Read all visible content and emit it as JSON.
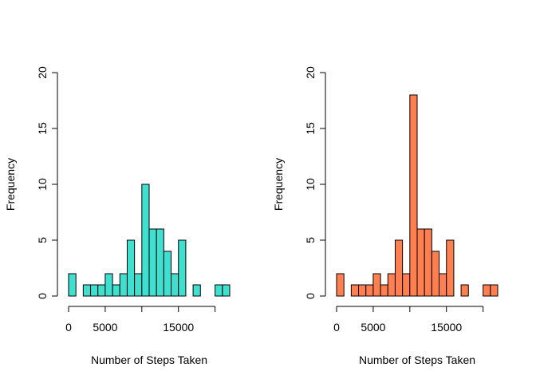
{
  "chart_data": [
    {
      "type": "bar",
      "subtype": "histogram",
      "title": "",
      "xlabel": "Number of Steps Taken",
      "ylabel": "Frequency",
      "bin_width": 1000,
      "bin_start": 0,
      "values": [
        2,
        0,
        1,
        1,
        1,
        2,
        1,
        2,
        5,
        2,
        10,
        6,
        6,
        4,
        2,
        5,
        0,
        1,
        0,
        0,
        1,
        1
      ],
      "xlim": [
        0,
        22000
      ],
      "ylim": [
        0,
        20
      ],
      "xticks": [
        0,
        5000,
        10000,
        15000,
        20000
      ],
      "xtick_labels": [
        "0",
        "5000",
        "",
        "15000",
        ""
      ],
      "yticks": [
        0,
        5,
        10,
        15,
        20
      ],
      "ytick_labels": [
        "0",
        "5",
        "10",
        "15",
        "20"
      ],
      "grid": false,
      "color": "#40E0D0"
    },
    {
      "type": "bar",
      "subtype": "histogram",
      "title": "",
      "xlabel": "Number of Steps Taken",
      "ylabel": "Frequency",
      "bin_width": 1000,
      "bin_start": 0,
      "values": [
        2,
        0,
        1,
        1,
        1,
        2,
        1,
        2,
        5,
        2,
        18,
        6,
        6,
        4,
        2,
        5,
        0,
        1,
        0,
        0,
        1,
        1
      ],
      "xlim": [
        0,
        22000
      ],
      "ylim": [
        0,
        20
      ],
      "xticks": [
        0,
        5000,
        10000,
        15000,
        20000
      ],
      "xtick_labels": [
        "0",
        "5000",
        "",
        "15000",
        ""
      ],
      "yticks": [
        0,
        5,
        10,
        15,
        20
      ],
      "ytick_labels": [
        "0",
        "5",
        "10",
        "15",
        "20"
      ],
      "grid": false,
      "color": "#FF7F50"
    }
  ]
}
